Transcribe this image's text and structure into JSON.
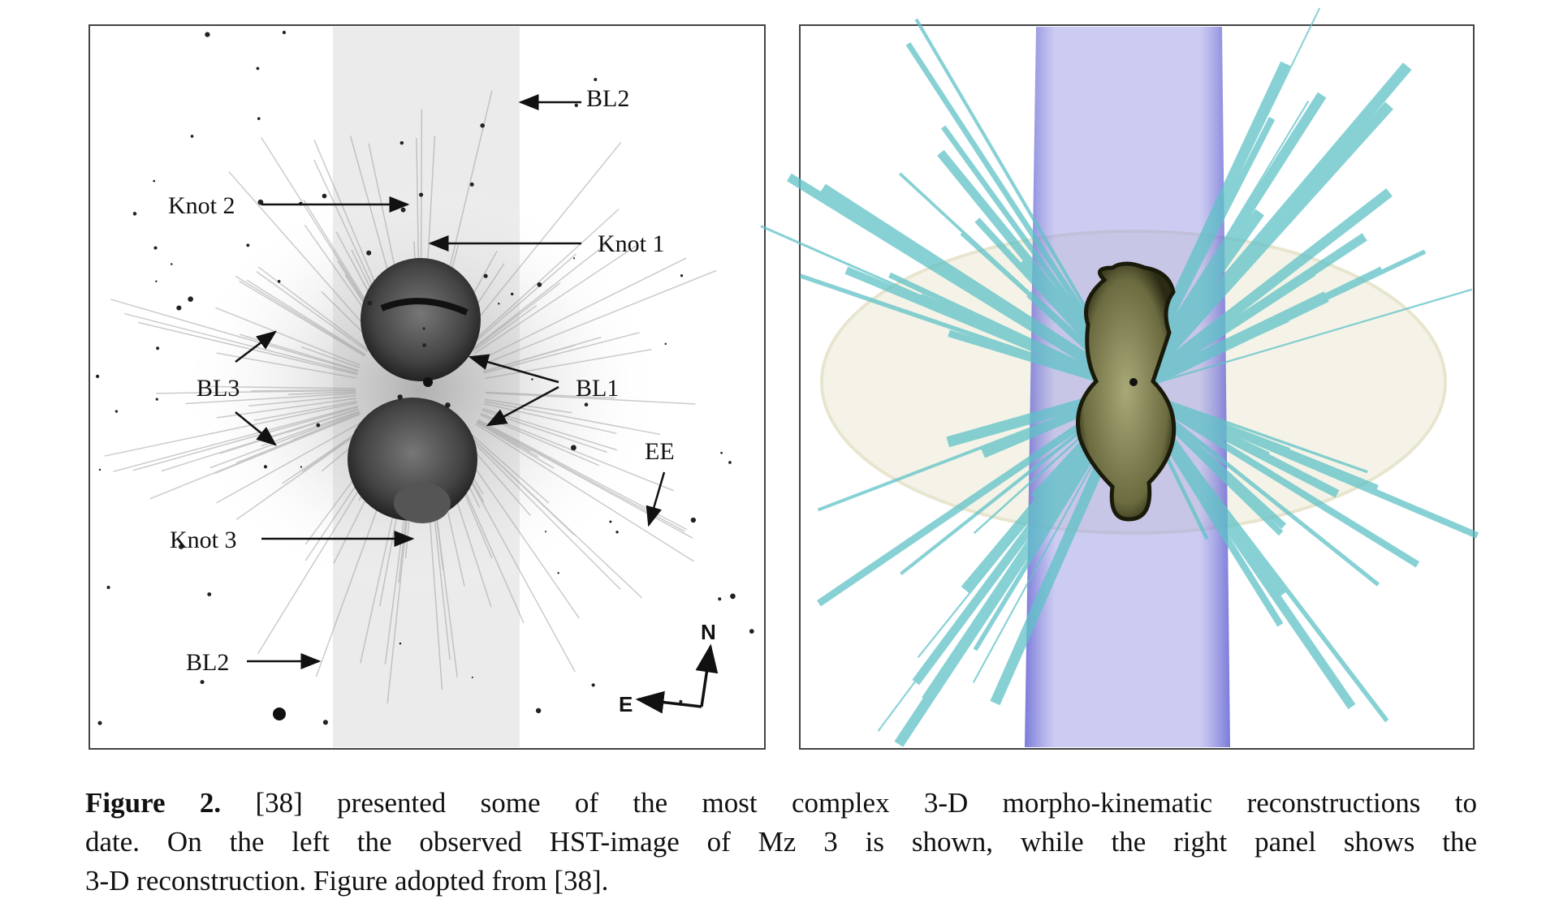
{
  "figure": {
    "left_panel": {
      "labels": [
        "BL2",
        "Knot 2",
        "Knot 1",
        "BL3",
        "BL1",
        "EE",
        "Knot 3",
        "BL2",
        "N",
        "E"
      ]
    },
    "caption": {
      "label": "Figure 2.",
      "lines": [
        "[38] presented some of the most complex 3-D morpho-kinematic reconstructions to",
        "date.  On the left the observed HST-image of Mz 3 is shown, while the right panel shows the",
        "3-D reconstruction. Figure adopted from [38]."
      ]
    }
  }
}
